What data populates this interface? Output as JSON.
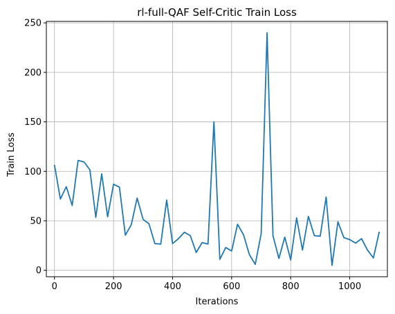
{
  "chart_data": {
    "type": "line",
    "title": "rl-full-QAF Self-Critic Train Loss",
    "xlabel": "Iterations",
    "ylabel": "Train Loss",
    "xlim": [
      -27.5,
      1127.5
    ],
    "ylim": [
      -6.5,
      251.5
    ],
    "xticks": [
      0,
      200,
      400,
      600,
      800,
      1000
    ],
    "yticks": [
      0,
      50,
      100,
      150,
      200,
      250
    ],
    "grid": true,
    "colors": {
      "line": "#1f77b4",
      "grid": "#b0b0b0"
    },
    "series": [
      {
        "x": [
          0,
          20,
          40,
          60,
          80,
          100,
          120,
          140,
          160,
          180,
          200,
          220,
          240,
          260,
          280,
          300,
          320,
          340,
          360,
          380,
          400,
          420,
          440,
          460,
          480,
          500,
          520,
          540,
          560,
          580,
          600,
          620,
          640,
          660,
          680,
          700,
          720,
          740,
          760,
          780,
          800,
          820,
          840,
          860,
          880,
          900,
          920,
          940,
          960,
          980,
          1000,
          1020,
          1040,
          1060,
          1080,
          1100
        ],
        "values": [
          106.5,
          72,
          84.5,
          65.5,
          111,
          109.5,
          101.5,
          53.5,
          97.5,
          54,
          87,
          84,
          35.5,
          46,
          73,
          51.5,
          47,
          27,
          26.5,
          71,
          27,
          32,
          38.5,
          35,
          18,
          28,
          26.5,
          150,
          11,
          23,
          19.5,
          46.5,
          36,
          16,
          6,
          37,
          240,
          35,
          12,
          33.5,
          10.5,
          53,
          20.5,
          54.5,
          35,
          34.5,
          74,
          5,
          49,
          33,
          31,
          27.5,
          32,
          20.5,
          12.5,
          39
        ]
      }
    ]
  }
}
